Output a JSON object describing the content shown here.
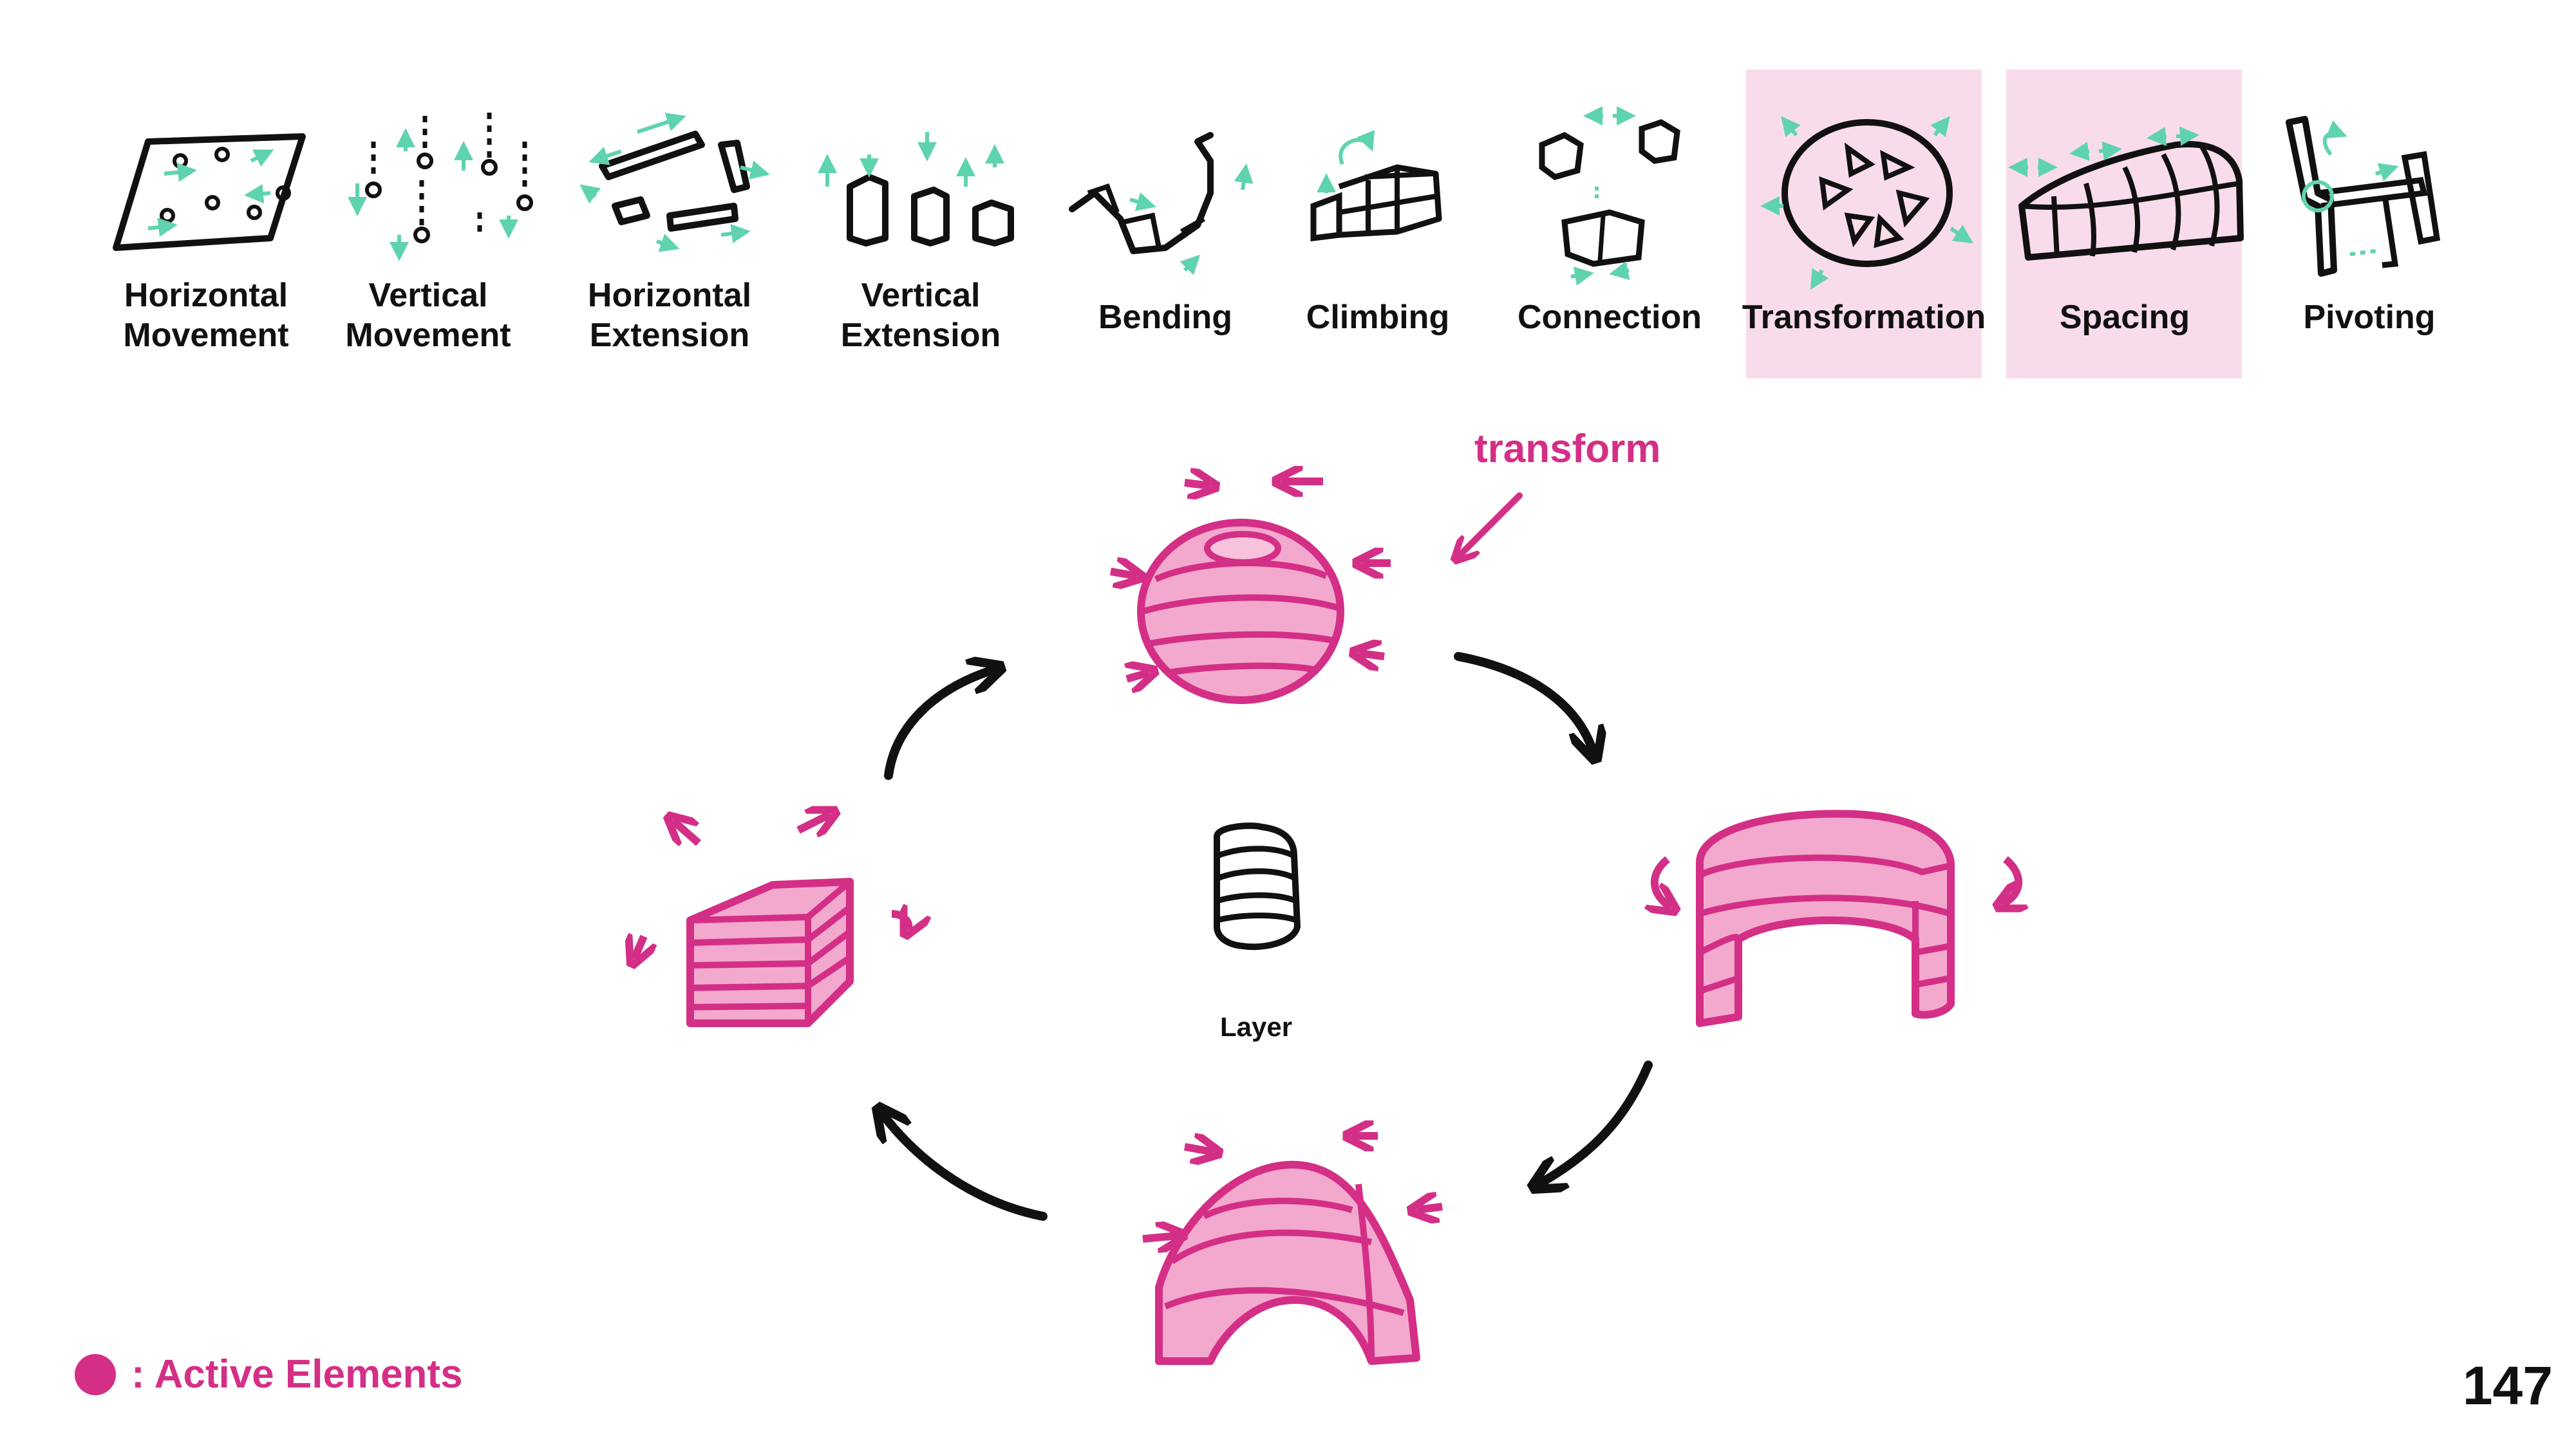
{
  "categories": [
    {
      "id": "horizontal-movement",
      "line1": "Horizontal",
      "line2": "Movement",
      "highlighted": false
    },
    {
      "id": "vertical-movement",
      "line1": "Vertical",
      "line2": "Movement",
      "highlighted": false
    },
    {
      "id": "horizontal-extension",
      "line1": "Horizontal",
      "line2": "Extension",
      "highlighted": false
    },
    {
      "id": "vertical-extension",
      "line1": "Vertical",
      "line2": "Extension",
      "highlighted": false
    },
    {
      "id": "bending",
      "line1": "Bending",
      "line2": "",
      "highlighted": false
    },
    {
      "id": "climbing",
      "line1": "Climbing",
      "line2": "",
      "highlighted": false
    },
    {
      "id": "connection",
      "line1": "Connection",
      "line2": "",
      "highlighted": false
    },
    {
      "id": "transformation",
      "line1": "Transformation",
      "line2": "",
      "highlighted": true
    },
    {
      "id": "spacing",
      "line1": "Spacing",
      "line2": "",
      "highlighted": true
    },
    {
      "id": "pivoting",
      "line1": "Pivoting",
      "line2": "",
      "highlighted": false
    }
  ],
  "diagram": {
    "annotation": "transform",
    "center_label": "Layer"
  },
  "legend": {
    "text": ": Active Elements"
  },
  "page_number": "147",
  "colors": {
    "accent_pink": "#d42f86",
    "fill_pink": "#f3a9cd",
    "highlight_bg": "#f9dceb",
    "teal_arrows": "#5fd3b0",
    "ink": "#111111"
  }
}
